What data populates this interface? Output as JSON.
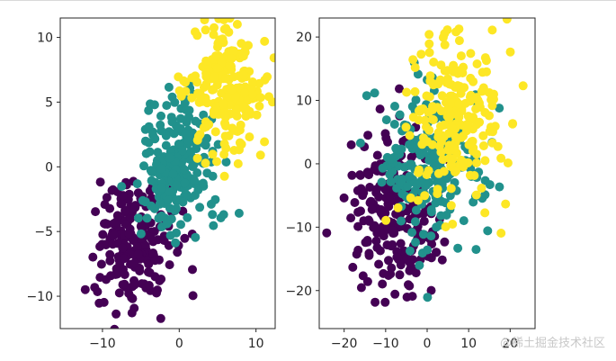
{
  "colors": {
    "c0": "#440154",
    "c1": "#21918c",
    "c2": "#fde725",
    "axis": "#262626"
  },
  "watermark": "@稀土掘金技术社区",
  "chart_data": [
    {
      "type": "scatter",
      "title": "",
      "xlabel": "",
      "ylabel": "",
      "xlim": [
        -15.5,
        12.5
      ],
      "ylim": [
        -12.5,
        11.5
      ],
      "xticks": [
        -10,
        0,
        10
      ],
      "yticks": [
        -10,
        -5,
        0,
        5,
        10
      ],
      "grid": false,
      "series": [
        {
          "cluster": 0,
          "center": [
            -6,
            -6
          ],
          "spread": [
            2.5,
            2.6
          ],
          "count": 220
        },
        {
          "cluster": 1,
          "center": [
            0,
            0
          ],
          "spread": [
            2.5,
            2.6
          ],
          "count": 220
        },
        {
          "cluster": 2,
          "center": [
            6,
            6
          ],
          "spread": [
            2.5,
            2.6
          ],
          "count": 220
        }
      ]
    },
    {
      "type": "scatter",
      "title": "",
      "xlabel": "",
      "ylabel": "",
      "xlim": [
        -26,
        26
      ],
      "ylim": [
        -26,
        23
      ],
      "xticks": [
        -20,
        -10,
        0,
        10,
        20
      ],
      "yticks": [
        -20,
        -10,
        0,
        10,
        20
      ],
      "grid": false,
      "series": [
        {
          "cluster": 0,
          "center": [
            -7,
            -8
          ],
          "spread": [
            6,
            6.5
          ],
          "count": 220
        },
        {
          "cluster": 1,
          "center": [
            1,
            0
          ],
          "spread": [
            6,
            6.5
          ],
          "count": 220
        },
        {
          "cluster": 2,
          "center": [
            7,
            7
          ],
          "spread": [
            6,
            6.5
          ],
          "count": 220
        }
      ]
    }
  ]
}
